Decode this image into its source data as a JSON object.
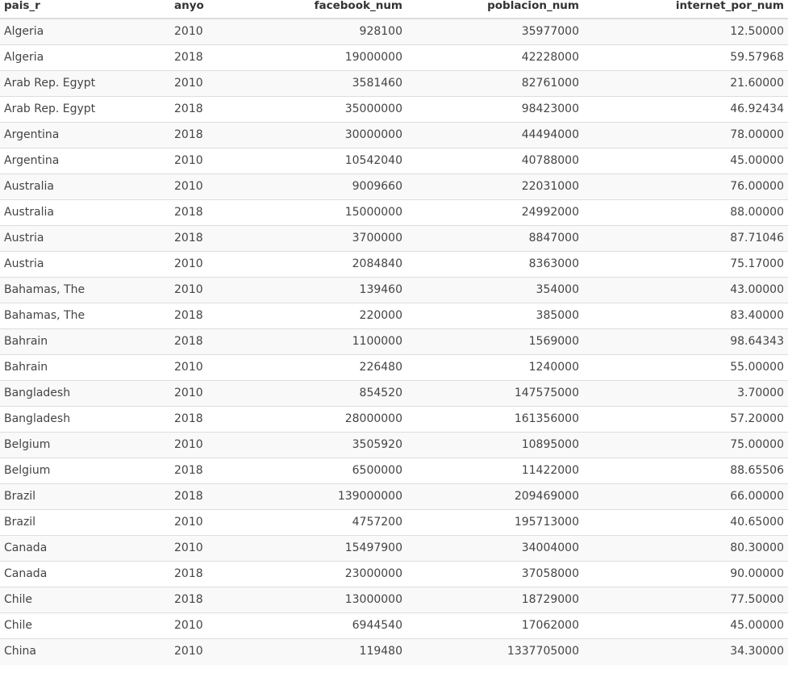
{
  "table": {
    "columns": [
      {
        "key": "pais_r",
        "label": "pais_r"
      },
      {
        "key": "anyo",
        "label": "anyo"
      },
      {
        "key": "facebook_num",
        "label": "facebook_num"
      },
      {
        "key": "poblacion_num",
        "label": "poblacion_num"
      },
      {
        "key": "internet_por_num",
        "label": "internet_por_num"
      }
    ],
    "rows": [
      [
        "Algeria",
        "2010",
        "928100",
        "35977000",
        "12.50000"
      ],
      [
        "Algeria",
        "2018",
        "19000000",
        "42228000",
        "59.57968"
      ],
      [
        "Arab Rep. Egypt",
        "2010",
        "3581460",
        "82761000",
        "21.60000"
      ],
      [
        "Arab Rep. Egypt",
        "2018",
        "35000000",
        "98423000",
        "46.92434"
      ],
      [
        "Argentina",
        "2018",
        "30000000",
        "44494000",
        "78.00000"
      ],
      [
        "Argentina",
        "2010",
        "10542040",
        "40788000",
        "45.00000"
      ],
      [
        "Australia",
        "2010",
        "9009660",
        "22031000",
        "76.00000"
      ],
      [
        "Australia",
        "2018",
        "15000000",
        "24992000",
        "88.00000"
      ],
      [
        "Austria",
        "2018",
        "3700000",
        "8847000",
        "87.71046"
      ],
      [
        "Austria",
        "2010",
        "2084840",
        "8363000",
        "75.17000"
      ],
      [
        "Bahamas, The",
        "2010",
        "139460",
        "354000",
        "43.00000"
      ],
      [
        "Bahamas, The",
        "2018",
        "220000",
        "385000",
        "83.40000"
      ],
      [
        "Bahrain",
        "2018",
        "1100000",
        "1569000",
        "98.64343"
      ],
      [
        "Bahrain",
        "2010",
        "226480",
        "1240000",
        "55.00000"
      ],
      [
        "Bangladesh",
        "2010",
        "854520",
        "147575000",
        "3.70000"
      ],
      [
        "Bangladesh",
        "2018",
        "28000000",
        "161356000",
        "57.20000"
      ],
      [
        "Belgium",
        "2010",
        "3505920",
        "10895000",
        "75.00000"
      ],
      [
        "Belgium",
        "2018",
        "6500000",
        "11422000",
        "88.65506"
      ],
      [
        "Brazil",
        "2018",
        "139000000",
        "209469000",
        "66.00000"
      ],
      [
        "Brazil",
        "2010",
        "4757200",
        "195713000",
        "40.65000"
      ],
      [
        "Canada",
        "2010",
        "15497900",
        "34004000",
        "80.30000"
      ],
      [
        "Canada",
        "2018",
        "23000000",
        "37058000",
        "90.00000"
      ],
      [
        "Chile",
        "2018",
        "13000000",
        "18729000",
        "77.50000"
      ],
      [
        "Chile",
        "2010",
        "6944540",
        "17062000",
        "45.00000"
      ],
      [
        "China",
        "2010",
        "119480",
        "1337705000",
        "34.30000"
      ]
    ]
  }
}
